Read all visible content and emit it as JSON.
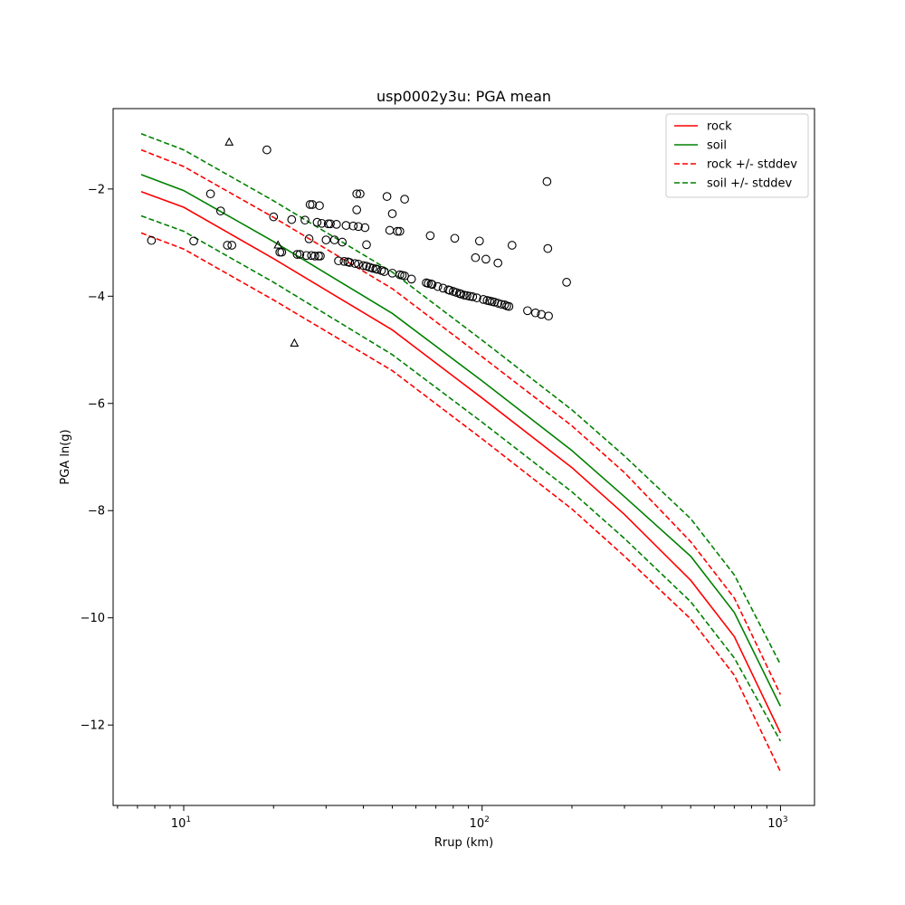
{
  "chart_data": {
    "type": "scatter",
    "title": "usp0002y3u: PGA mean",
    "xlabel": "Rrup (km)",
    "ylabel": "PGA ln(g)",
    "xscale": "log",
    "xlim": [
      5.8,
      1300
    ],
    "ylim": [
      -13.5,
      -0.5
    ],
    "x_ticks": [
      {
        "value": 10,
        "base": "10",
        "exp": "1"
      },
      {
        "value": 100,
        "base": "10",
        "exp": "2"
      },
      {
        "value": 1000,
        "base": "10",
        "exp": "3"
      }
    ],
    "y_ticks": [
      {
        "value": -12,
        "label": "−12"
      },
      {
        "value": -10,
        "label": "−10"
      },
      {
        "value": -8,
        "label": "−8"
      },
      {
        "value": -6,
        "label": "−6"
      },
      {
        "value": -4,
        "label": "−4"
      },
      {
        "value": -2,
        "label": "−2"
      }
    ],
    "legend_position": "top-right",
    "series": [
      {
        "name": "rock",
        "label": "rock",
        "color": "#ff0000",
        "dash": false,
        "in_legend": true,
        "x": [
          7.2,
          10,
          20,
          50,
          100,
          200,
          300,
          500,
          700,
          1000
        ],
        "y": [
          -2.05,
          -2.34,
          -3.3,
          -4.63,
          -5.9,
          -7.2,
          -8.07,
          -9.3,
          -10.35,
          -12.15
        ]
      },
      {
        "name": "soil",
        "label": "soil",
        "color": "#008000",
        "dash": false,
        "in_legend": true,
        "x": [
          7.2,
          10,
          20,
          50,
          100,
          200,
          300,
          500,
          700,
          1000
        ],
        "y": [
          -1.73,
          -2.03,
          -2.98,
          -4.32,
          -5.58,
          -6.88,
          -7.74,
          -8.85,
          -9.9,
          -11.65
        ]
      },
      {
        "name": "rock_plus",
        "label": "rock +/- stddev",
        "color": "#ff0000",
        "dash": true,
        "in_legend": true,
        "x": [
          7.2,
          10,
          20,
          50,
          100,
          200,
          300,
          500,
          700,
          1000
        ],
        "y": [
          -1.27,
          -1.58,
          -2.53,
          -3.86,
          -5.13,
          -6.42,
          -7.29,
          -8.58,
          -9.63,
          -11.43
        ]
      },
      {
        "name": "rock_minus",
        "label": "rock +/- stddev",
        "color": "#ff0000",
        "dash": true,
        "in_legend": false,
        "x": [
          7.2,
          10,
          20,
          50,
          100,
          200,
          300,
          500,
          700,
          1000
        ],
        "y": [
          -2.82,
          -3.12,
          -4.07,
          -5.39,
          -6.66,
          -7.97,
          -8.85,
          -10.02,
          -11.07,
          -12.87
        ]
      },
      {
        "name": "soil_plus",
        "label": "soil +/- stddev",
        "color": "#008000",
        "dash": true,
        "in_legend": true,
        "x": [
          7.2,
          10,
          20,
          50,
          100,
          200,
          300,
          500,
          700,
          1000
        ],
        "y": [
          -0.97,
          -1.27,
          -2.22,
          -3.55,
          -4.82,
          -6.12,
          -6.98,
          -8.15,
          -9.2,
          -10.87
        ]
      },
      {
        "name": "soil_minus",
        "label": "soil +/- stddev",
        "color": "#008000",
        "dash": true,
        "in_legend": false,
        "x": [
          7.2,
          10,
          20,
          50,
          100,
          200,
          300,
          500,
          700,
          1000
        ],
        "y": [
          -2.5,
          -2.79,
          -3.74,
          -5.09,
          -6.35,
          -7.65,
          -8.52,
          -9.7,
          -10.75,
          -12.3
        ]
      }
    ],
    "observations_circle": [
      [
        7.8,
        -2.96
      ],
      [
        10.8,
        -2.97
      ],
      [
        12.3,
        -2.09
      ],
      [
        13.3,
        -2.41
      ],
      [
        14.0,
        -3.05
      ],
      [
        14.5,
        -3.05
      ],
      [
        19.0,
        -1.27
      ],
      [
        20.0,
        -2.52
      ],
      [
        21.0,
        -3.18
      ],
      [
        21.3,
        -3.18
      ],
      [
        23.0,
        -2.57
      ],
      [
        24.0,
        -3.22
      ],
      [
        24.5,
        -3.22
      ],
      [
        25.5,
        -2.58
      ],
      [
        25.8,
        -3.24
      ],
      [
        26.3,
        -2.93
      ],
      [
        26.8,
        -3.24
      ],
      [
        26.5,
        -2.29
      ],
      [
        27.0,
        -2.29
      ],
      [
        27.5,
        -3.25
      ],
      [
        28.0,
        -2.62
      ],
      [
        28.3,
        -3.25
      ],
      [
        28.7,
        -3.25
      ],
      [
        28.5,
        -2.31
      ],
      [
        29.0,
        -2.64
      ],
      [
        30.0,
        -2.95
      ],
      [
        30.5,
        -2.65
      ],
      [
        31.0,
        -2.65
      ],
      [
        32.0,
        -2.95
      ],
      [
        32.5,
        -2.66
      ],
      [
        33.0,
        -3.34
      ],
      [
        34.0,
        -2.99
      ],
      [
        34.5,
        -3.35
      ],
      [
        35.0,
        -2.68
      ],
      [
        35.5,
        -3.36
      ],
      [
        36.0,
        -3.37
      ],
      [
        37.0,
        -2.69
      ],
      [
        37.5,
        -3.39
      ],
      [
        38.0,
        -2.09
      ],
      [
        38.0,
        -2.39
      ],
      [
        38.5,
        -3.4
      ],
      [
        38.5,
        -2.7
      ],
      [
        39.0,
        -2.09
      ],
      [
        40.0,
        -3.43
      ],
      [
        40.5,
        -2.72
      ],
      [
        41.0,
        -3.04
      ],
      [
        41.0,
        -3.44
      ],
      [
        42.0,
        -3.46
      ],
      [
        43.0,
        -3.48
      ],
      [
        44.0,
        -3.49
      ],
      [
        44.5,
        -3.5
      ],
      [
        46.0,
        -3.52
      ],
      [
        47.0,
        -3.54
      ],
      [
        48.0,
        -2.14
      ],
      [
        49.0,
        -2.77
      ],
      [
        50.0,
        -2.46
      ],
      [
        50.0,
        -3.57
      ],
      [
        52.0,
        -2.79
      ],
      [
        53.0,
        -2.79
      ],
      [
        53.0,
        -3.6
      ],
      [
        54.0,
        -3.61
      ],
      [
        55.0,
        -2.19
      ],
      [
        55.0,
        -3.62
      ],
      [
        58.0,
        -3.68
      ],
      [
        65.0,
        -3.75
      ],
      [
        66.0,
        -3.76
      ],
      [
        67.0,
        -2.87
      ],
      [
        67.5,
        -3.77
      ],
      [
        68.0,
        -3.78
      ],
      [
        71.0,
        -3.82
      ],
      [
        74.0,
        -3.85
      ],
      [
        77.0,
        -3.88
      ],
      [
        78.0,
        -3.89
      ],
      [
        80.0,
        -3.91
      ],
      [
        81.0,
        -2.92
      ],
      [
        82.0,
        -3.93
      ],
      [
        84.0,
        -3.95
      ],
      [
        85.0,
        -3.96
      ],
      [
        87.0,
        -3.98
      ],
      [
        89.0,
        -3.99
      ],
      [
        91.0,
        -4.0
      ],
      [
        93.0,
        -4.01
      ],
      [
        95.0,
        -3.28
      ],
      [
        96.0,
        -4.03
      ],
      [
        98.0,
        -2.97
      ],
      [
        101.0,
        -4.06
      ],
      [
        103.0,
        -3.31
      ],
      [
        104.0,
        -4.08
      ],
      [
        106.0,
        -4.09
      ],
      [
        108.0,
        -4.1
      ],
      [
        110.0,
        -4.11
      ],
      [
        113.0,
        -3.38
      ],
      [
        113.0,
        -4.13
      ],
      [
        116.0,
        -4.15
      ],
      [
        119.0,
        -4.16
      ],
      [
        121.0,
        -4.18
      ],
      [
        123.0,
        -4.19
      ],
      [
        126.0,
        -3.05
      ],
      [
        142.0,
        -4.27
      ],
      [
        151.0,
        -4.31
      ],
      [
        158.0,
        -4.34
      ],
      [
        165.0,
        -1.86
      ],
      [
        166.0,
        -3.11
      ],
      [
        167.0,
        -4.37
      ],
      [
        192.0,
        -3.74
      ]
    ],
    "observations_triangle": [
      [
        14.2,
        -1.13
      ],
      [
        20.7,
        -3.05
      ],
      [
        23.5,
        -4.88
      ]
    ]
  }
}
